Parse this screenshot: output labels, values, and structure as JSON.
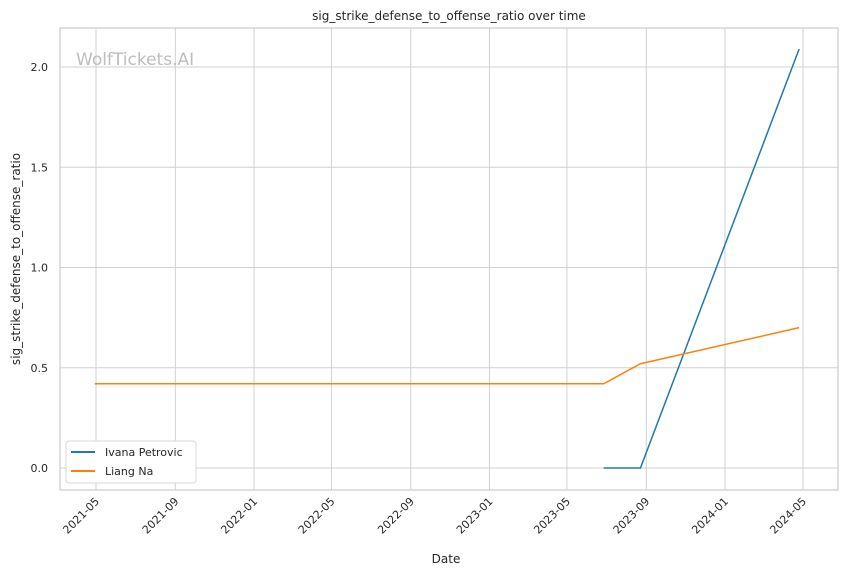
{
  "chart_data": {
    "type": "line",
    "title": "sig_strike_defense_to_offense_ratio over time",
    "xlabel": "Date",
    "ylabel": "sig_strike_defense_to_offense_ratio",
    "watermark": "WolfTickets.AI",
    "x_ticks": [
      "2021-05",
      "2021-09",
      "2022-01",
      "2022-05",
      "2022-09",
      "2023-01",
      "2023-05",
      "2023-09",
      "2024-01",
      "2024-05"
    ],
    "y_ticks": [
      0.0,
      0.5,
      1.0,
      1.5,
      2.0
    ],
    "xlim": [
      "2021-03-20",
      "2024-05-25"
    ],
    "ylim": [
      -0.105,
      2.2
    ],
    "grid": true,
    "legend_position": "lower-left",
    "series": [
      {
        "name": "Ivana Petrovic",
        "color": "#1f77b4",
        "x": [
          "2023-06-27",
          "2023-08-23",
          "2024-04-25"
        ],
        "y": [
          0.0,
          0.0,
          2.09
        ]
      },
      {
        "name": "Liang Na",
        "color": "#ff7f0e",
        "x": [
          "2021-04-29",
          "2023-06-27",
          "2023-08-23",
          "2024-04-25"
        ],
        "y": [
          0.42,
          0.42,
          0.52,
          0.7
        ]
      }
    ]
  }
}
